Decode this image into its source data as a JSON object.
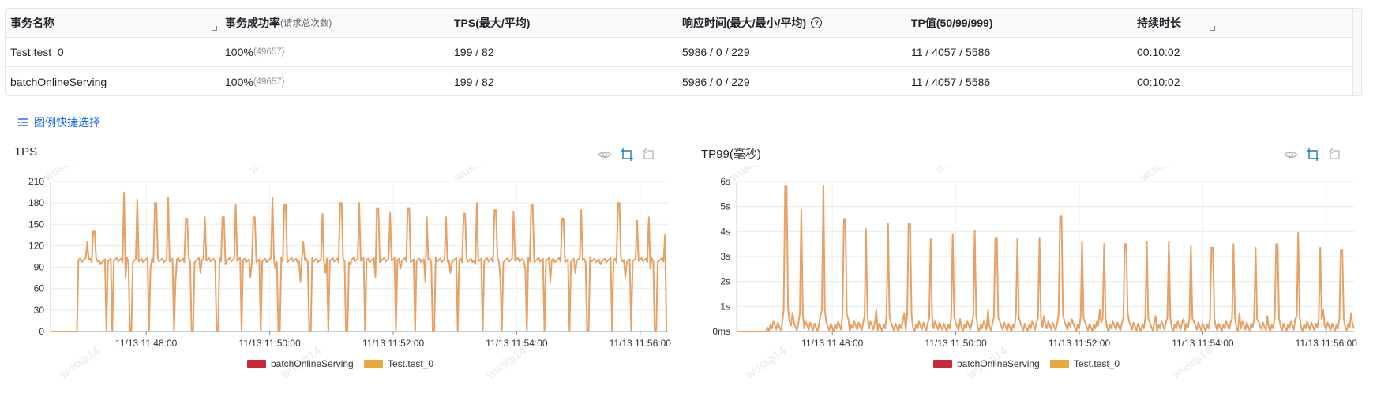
{
  "table": {
    "headers": {
      "name": "事务名称",
      "success_rate": "事务成功率",
      "success_rate_sub": "(请求总次数)",
      "tps": "TPS(最大/平均)",
      "latency": "响应时间(最大/最小/平均)",
      "tp": "TP值(50/99/999)",
      "duration": "持续时长"
    },
    "rows": [
      {
        "name": "Test.test_0",
        "rate": "100%",
        "count": "(49657)",
        "tps": "199 / 82",
        "latency": "5986 / 0 / 229",
        "tp": "11 / 4057 / 5586",
        "duration": "00:10:02"
      },
      {
        "name": "batchOnlineServing",
        "rate": "100%",
        "count": "(49657)",
        "tps": "199 / 82",
        "latency": "5986 / 0 / 229",
        "tp": "11 / 4057 / 5586",
        "duration": "00:10:02"
      }
    ]
  },
  "legend_select_label": "图例快捷选择",
  "watermark": "wusiqi14",
  "colors": {
    "line": "#e8a064",
    "series_batch": "#c8283a",
    "series_test": "#e9a83a",
    "accent": "#1664ff"
  },
  "chart_data": [
    {
      "type": "line",
      "title": "TPS",
      "y_ticks": [
        "0",
        "30",
        "60",
        "90",
        "120",
        "150",
        "180",
        "210"
      ],
      "ylim": [
        0,
        210
      ],
      "x_ticks": [
        "11/13 11:48:00",
        "11/13 11:50:00",
        "11/13 11:52:00",
        "11/13 11:54:00",
        "11/13 11:56:00"
      ],
      "x_tick_positions": [
        0.155,
        0.355,
        0.555,
        0.755,
        0.955
      ],
      "series": [
        {
          "name": "batchOnlineServing",
          "color": "#c8283a"
        },
        {
          "name": "Test.test_0",
          "color": "#e9a83a"
        }
      ],
      "data_description": "approximately 100 baseline with periodic spikes up to ~195 and drops to 0",
      "baseline": 100,
      "start_zero_fraction": 0.045,
      "spikes": [
        0.06,
        0.07,
        0.09,
        0.1,
        0.12,
        0.14,
        0.17,
        0.19,
        0.22,
        0.25,
        0.28,
        0.3,
        0.33,
        0.36,
        0.38,
        0.41,
        0.44,
        0.47,
        0.5,
        0.53,
        0.55,
        0.58,
        0.61,
        0.64,
        0.67,
        0.69,
        0.72,
        0.75,
        0.78,
        0.81,
        0.83,
        0.86,
        0.89,
        0.92,
        0.95,
        0.97,
        0.995
      ],
      "spike_values": [
        125,
        140,
        130,
        155,
        195,
        185,
        180,
        188,
        158,
        160,
        160,
        178,
        160,
        188,
        178,
        125,
        165,
        180,
        180,
        173,
        166,
        173,
        160,
        160,
        165,
        180,
        170,
        168,
        178,
        182,
        158,
        170,
        167,
        180,
        155,
        160,
        135
      ],
      "drops": [
        0.09,
        0.1,
        0.13,
        0.16,
        0.2,
        0.23,
        0.27,
        0.31,
        0.34,
        0.37,
        0.42,
        0.45,
        0.48,
        0.51,
        0.56,
        0.59,
        0.62,
        0.66,
        0.7,
        0.73,
        0.77,
        0.8,
        0.84,
        0.87,
        0.91,
        0.94,
        0.98,
        0.999
      ]
    },
    {
      "type": "line",
      "title": "TP99(毫秒)",
      "y_ticks": [
        "0ms",
        "1s",
        "2s",
        "3s",
        "4s",
        "5s",
        "6s"
      ],
      "ylim": [
        0,
        6000
      ],
      "x_ticks": [
        "11/13 11:48:00",
        "11/13 11:50:00",
        "11/13 11:52:00",
        "11/13 11:54:00",
        "11/13 11:56:00"
      ],
      "x_tick_positions": [
        0.155,
        0.355,
        0.555,
        0.755,
        0.955
      ],
      "series": [
        {
          "name": "batchOnlineServing",
          "color": "#c8283a"
        },
        {
          "name": "Test.test_0",
          "color": "#e9a83a"
        }
      ],
      "data_description": "near-zero baseline with periodic spikes of 3–6s",
      "spikes": [
        0.08,
        0.105,
        0.14,
        0.175,
        0.21,
        0.245,
        0.28,
        0.315,
        0.35,
        0.385,
        0.42,
        0.455,
        0.49,
        0.525,
        0.56,
        0.595,
        0.63,
        0.665,
        0.7,
        0.735,
        0.77,
        0.805,
        0.84,
        0.875,
        0.91,
        0.945,
        0.98
      ],
      "spike_values": [
        5800,
        4850,
        5850,
        4500,
        4100,
        4300,
        4300,
        3700,
        3900,
        4050,
        3750,
        3700,
        3750,
        4600,
        3600,
        3500,
        3500,
        3600,
        3600,
        3450,
        3350,
        3500,
        3350,
        3500,
        3950,
        3350,
        3250
      ]
    }
  ]
}
